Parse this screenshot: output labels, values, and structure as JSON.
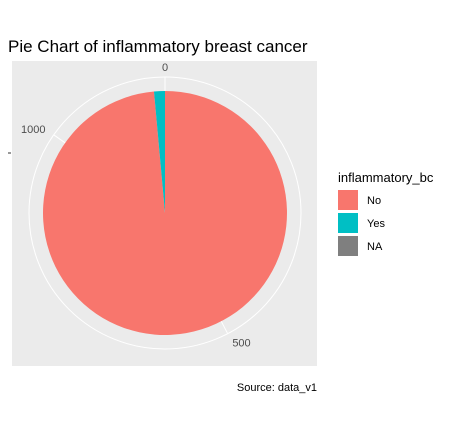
{
  "chart_data": {
    "type": "pie",
    "title": "Pie Chart of inflammatory breast cancer",
    "caption": "Source: data_v1",
    "legend": {
      "title": "inflammatory_bc",
      "position": "right"
    },
    "slices": [
      {
        "label": "No",
        "value": 1163,
        "color": "#F8766D"
      },
      {
        "label": "Yes",
        "value": 17,
        "color": "#00BFC4"
      },
      {
        "label": "NA",
        "value": 0,
        "color": "#7F7F7F"
      }
    ],
    "theta_axis": {
      "ticks": [
        0,
        500,
        1000
      ]
    },
    "panel_background": "#EBEBEB",
    "grid_color": "#FFFFFF"
  }
}
